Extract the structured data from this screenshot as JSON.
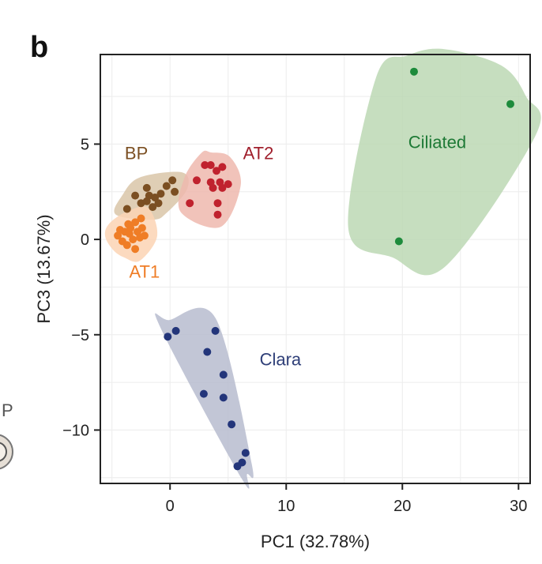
{
  "panel_label": "b",
  "chart_data": {
    "type": "scatter",
    "xlabel": "PC1 (32.78%)",
    "ylabel": "PC3 (13.67%)",
    "xlim": [
      -6,
      31
    ],
    "ylim": [
      -12.8,
      9.7
    ],
    "xticks": [
      0,
      10,
      20,
      30
    ],
    "yticks": [
      5,
      0,
      -5,
      -10
    ],
    "grid": true,
    "series": [
      {
        "name": "BP",
        "color": "#7b4f22",
        "hull_fill": "#d9c6a8",
        "points": [
          [
            -3.7,
            1.6
          ],
          [
            -3.0,
            2.3
          ],
          [
            -2.5,
            1.9
          ],
          [
            -2.0,
            2.7
          ],
          [
            -2.0,
            2.0
          ],
          [
            -1.8,
            2.3
          ],
          [
            -1.5,
            1.7
          ],
          [
            -1.3,
            2.2
          ],
          [
            -1.0,
            1.9
          ],
          [
            -0.8,
            2.4
          ],
          [
            -0.3,
            2.8
          ],
          [
            0.2,
            3.1
          ],
          [
            0.4,
            2.5
          ]
        ]
      },
      {
        "name": "AT1",
        "color": "#ef7d26",
        "hull_fill": "#fbd4b4",
        "points": [
          [
            -4.5,
            0.2
          ],
          [
            -4.3,
            0.5
          ],
          [
            -4.1,
            -0.1
          ],
          [
            -3.9,
            0.4
          ],
          [
            -3.7,
            -0.3
          ],
          [
            -3.5,
            0.3
          ],
          [
            -3.4,
            0.6
          ],
          [
            -3.2,
            0.0
          ],
          [
            -3.0,
            -0.5
          ],
          [
            -2.8,
            0.4
          ],
          [
            -2.6,
            0.1
          ],
          [
            -2.4,
            0.6
          ],
          [
            -2.5,
            1.1
          ],
          [
            -3.0,
            0.9
          ],
          [
            -3.6,
            0.8
          ],
          [
            -2.2,
            0.2
          ]
        ]
      },
      {
        "name": "AT2",
        "color": "#c0222e",
        "hull_fill": "#eeb9ae",
        "points": [
          [
            1.7,
            1.9
          ],
          [
            2.3,
            3.1
          ],
          [
            3.0,
            3.9
          ],
          [
            3.5,
            3.9
          ],
          [
            3.5,
            3.0
          ],
          [
            3.7,
            2.7
          ],
          [
            4.0,
            3.6
          ],
          [
            4.1,
            1.9
          ],
          [
            4.3,
            3.0
          ],
          [
            4.5,
            3.8
          ],
          [
            4.5,
            2.7
          ],
          [
            4.1,
            1.3
          ],
          [
            5.0,
            2.9
          ]
        ]
      },
      {
        "name": "Clara",
        "color": "#23357a",
        "hull_fill": "#b7bccf",
        "points": [
          [
            -0.2,
            -5.1
          ],
          [
            0.5,
            -4.8
          ],
          [
            3.2,
            -5.9
          ],
          [
            3.9,
            -4.8
          ],
          [
            4.6,
            -7.1
          ],
          [
            2.9,
            -8.1
          ],
          [
            4.6,
            -8.3
          ],
          [
            5.3,
            -9.7
          ],
          [
            6.5,
            -11.2
          ],
          [
            6.2,
            -11.7
          ],
          [
            5.8,
            -11.9
          ]
        ]
      },
      {
        "name": "Ciliated",
        "color": "#1e8b3c",
        "hull_fill": "#bcd8b4",
        "points": [
          [
            21.0,
            8.8
          ],
          [
            29.3,
            7.1
          ],
          [
            19.7,
            -0.1
          ]
        ]
      }
    ],
    "cluster_labels": [
      {
        "text": "BP",
        "x": -2.9,
        "y": 4.2,
        "color": "#7b4f22"
      },
      {
        "text": "AT1",
        "x": -2.2,
        "y": -2.0,
        "color": "#ef7d26"
      },
      {
        "text": "AT2",
        "x": 7.6,
        "y": 4.2,
        "color": "#a01f2c"
      },
      {
        "text": "Clara",
        "x": 9.5,
        "y": -6.6,
        "color": "#2f3f78"
      },
      {
        "text": "Ciliated",
        "x": 23.0,
        "y": 4.8,
        "color": "#1e7a36"
      }
    ]
  },
  "edge_fragment": {
    "text": "P"
  }
}
